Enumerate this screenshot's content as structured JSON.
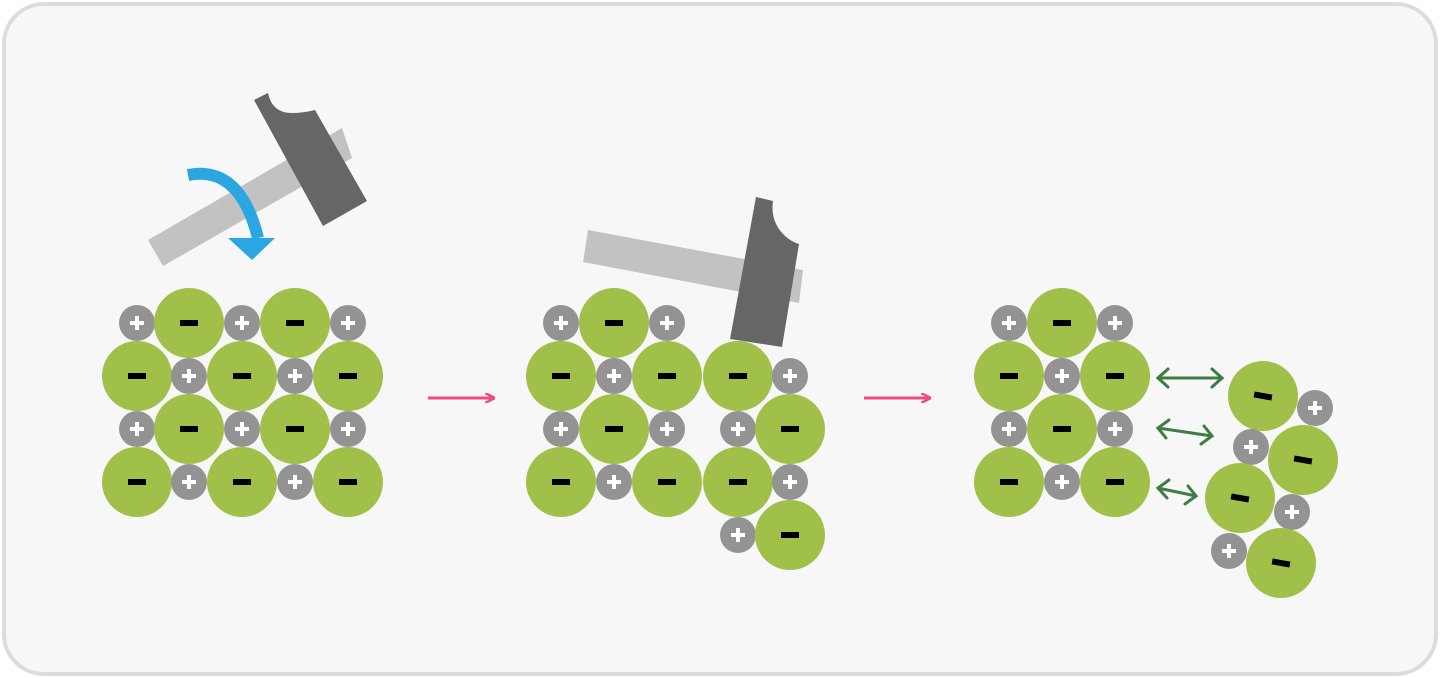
{
  "title": "",
  "colors": {
    "background": "#f7f7f7",
    "border": "#dcdcdc",
    "anion": "#a1c04a",
    "cation": "#939393",
    "hammer_head": "#666666",
    "hammer_handle": "#c2c2c2",
    "swing_arrow": "#2aa7e0",
    "process_arrow": "#ee4a86",
    "repulsion_arrow": "#3f7d44"
  },
  "symbols": {
    "cation": "+",
    "anion": "−"
  },
  "stages": [
    {
      "name": "hammer-strike",
      "description_shown": false
    },
    {
      "name": "layer-shift",
      "description_shown": false
    },
    {
      "name": "repulsion-fracture",
      "description_shown": false
    }
  ]
}
